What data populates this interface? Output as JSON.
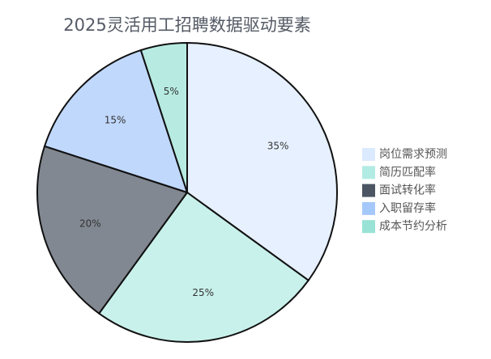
{
  "chart_data": {
    "type": "pie",
    "title": "2025灵活用工招聘数据驱动要素",
    "categories": [
      "岗位需求预测",
      "简历匹配率",
      "面试转化率",
      "入职留存率",
      "成本节约分析"
    ],
    "values": [
      35,
      25,
      20,
      15,
      5
    ],
    "value_labels": [
      "35%",
      "25%",
      "20%",
      "15%",
      "5%"
    ],
    "colors": [
      "#dbeafe",
      "#b2ebe3",
      "#4b5563",
      "#a5c8fb",
      "#99e2d6"
    ],
    "legend": "right"
  }
}
